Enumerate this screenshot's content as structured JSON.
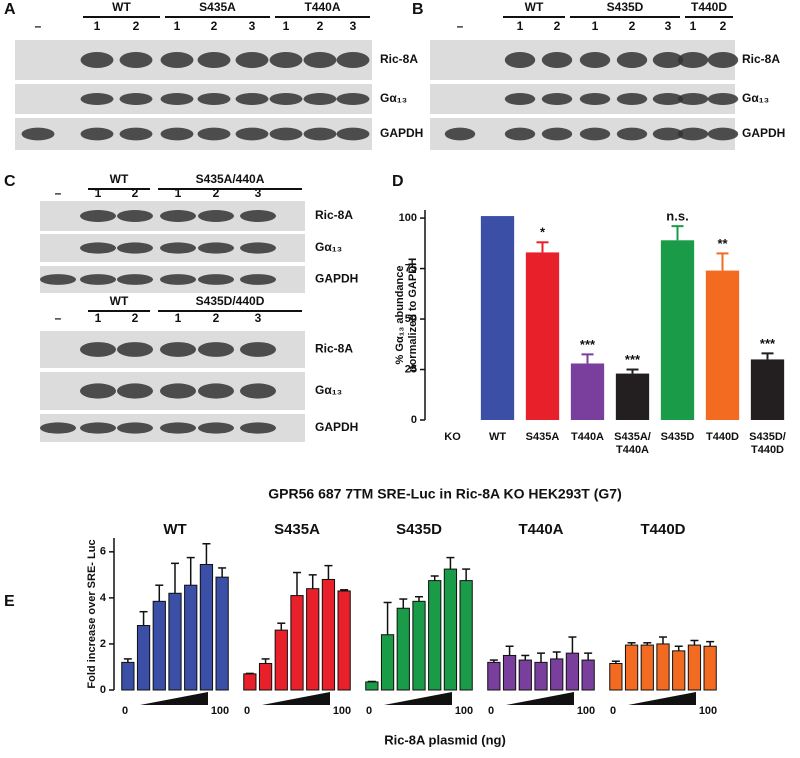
{
  "panels": {
    "a": "A",
    "b": "B",
    "c": "C",
    "d": "D",
    "e": "E"
  },
  "blots": [
    {
      "blank": "–",
      "groups": [
        {
          "label": "WT",
          "lanes": [
            "1",
            "2"
          ]
        },
        {
          "label": "S435A",
          "lanes": [
            "1",
            "2",
            "3"
          ]
        },
        {
          "label": "T440A",
          "lanes": [
            "1",
            "2",
            "3"
          ]
        }
      ],
      "rows": [
        "Ric-8A",
        "Gα₁₃",
        "GAPDH"
      ]
    },
    {
      "blank": "–",
      "groups": [
        {
          "label": "WT",
          "lanes": [
            "1",
            "2"
          ]
        },
        {
          "label": "S435D",
          "lanes": [
            "1",
            "2",
            "3"
          ]
        },
        {
          "label": "T440D",
          "lanes": [
            "1",
            "2"
          ]
        }
      ],
      "rows": [
        "Ric-8A",
        "Gα₁₃",
        "GAPDH"
      ]
    },
    {
      "blank": "–",
      "groups": [
        {
          "label": "WT",
          "lanes": [
            "1",
            "2"
          ]
        },
        {
          "label": "S435A/440A",
          "lanes": [
            "1",
            "2",
            "3"
          ]
        }
      ],
      "rows": [
        "Ric-8A",
        "Gα₁₃",
        "GAPDH"
      ]
    },
    {
      "blank": "–",
      "groups": [
        {
          "label": "WT",
          "lanes": [
            "1",
            "2"
          ]
        },
        {
          "label": "S435D/440D",
          "lanes": [
            "1",
            "2",
            "3"
          ]
        }
      ],
      "rows": [
        "Ric-8A",
        "Gα₁₃",
        "GAPDH"
      ]
    }
  ],
  "chart_data": [
    {
      "type": "bar",
      "ylabel": [
        "% Gα₁₃ abundance",
        "normalized to GAPDH"
      ],
      "categories": [
        "KO",
        "WT",
        "S435A",
        "T440A",
        "S435A/ T440A",
        "S435D",
        "T440D",
        "S435D/ T440D"
      ],
      "values": [
        0,
        101,
        83,
        28,
        23,
        89,
        74,
        30
      ],
      "errors": [
        0,
        0,
        5,
        4.5,
        2,
        7,
        8.5,
        3
      ],
      "annotations": [
        null,
        null,
        "*",
        "***",
        "***",
        "n.s.",
        "**",
        "***"
      ],
      "colors": [
        "#231f20",
        "#3a4fa5",
        "#e8202a",
        "#7a3f9d",
        "#231f20",
        "#1a9b48",
        "#f26b21",
        "#231f20"
      ],
      "ylim": [
        0,
        104
      ],
      "yticks": [
        0,
        25,
        50,
        75,
        100
      ]
    },
    {
      "type": "grouped-bar",
      "title": "GPR56 687 7TM SRE-Luc in Ric-8A KO HEK293T (G7)",
      "ylabel": "Fold increase over SRE- Luc",
      "xlabel": "Ric-8A plasmid (ng)",
      "x_range_labels": [
        "0",
        "100"
      ],
      "ylim": [
        0,
        6.6
      ],
      "yticks": [
        0,
        2,
        4,
        6
      ],
      "series": [
        {
          "name": "WT",
          "color": "#3a4fa5",
          "values": [
            1.2,
            2.8,
            3.85,
            4.2,
            4.55,
            5.45,
            4.9
          ],
          "errors": [
            0.15,
            0.6,
            0.7,
            1.3,
            1.2,
            0.9,
            0.4
          ]
        },
        {
          "name": "S435A",
          "color": "#e8202a",
          "values": [
            0.7,
            1.15,
            2.6,
            4.1,
            4.4,
            4.8,
            4.3
          ],
          "errors": [
            0.02,
            0.2,
            0.3,
            1.0,
            0.6,
            0.6,
            0.05
          ]
        },
        {
          "name": "S435D",
          "color": "#1a9b48",
          "values": [
            0.35,
            2.4,
            3.55,
            3.85,
            4.75,
            5.25,
            4.75
          ],
          "errors": [
            0.02,
            1.4,
            0.4,
            0.2,
            0.2,
            0.5,
            0.5
          ]
        },
        {
          "name": "T440A",
          "color": "#7a3f9d",
          "values": [
            1.2,
            1.5,
            1.3,
            1.2,
            1.35,
            1.6,
            1.3
          ],
          "errors": [
            0.1,
            0.4,
            0.2,
            0.4,
            0.3,
            0.7,
            0.3
          ]
        },
        {
          "name": "T440D",
          "color": "#f26b21",
          "values": [
            1.15,
            1.95,
            1.95,
            2.0,
            1.7,
            1.95,
            1.9
          ],
          "errors": [
            0.1,
            0.1,
            0.1,
            0.3,
            0.2,
            0.2,
            0.2
          ]
        }
      ]
    }
  ]
}
